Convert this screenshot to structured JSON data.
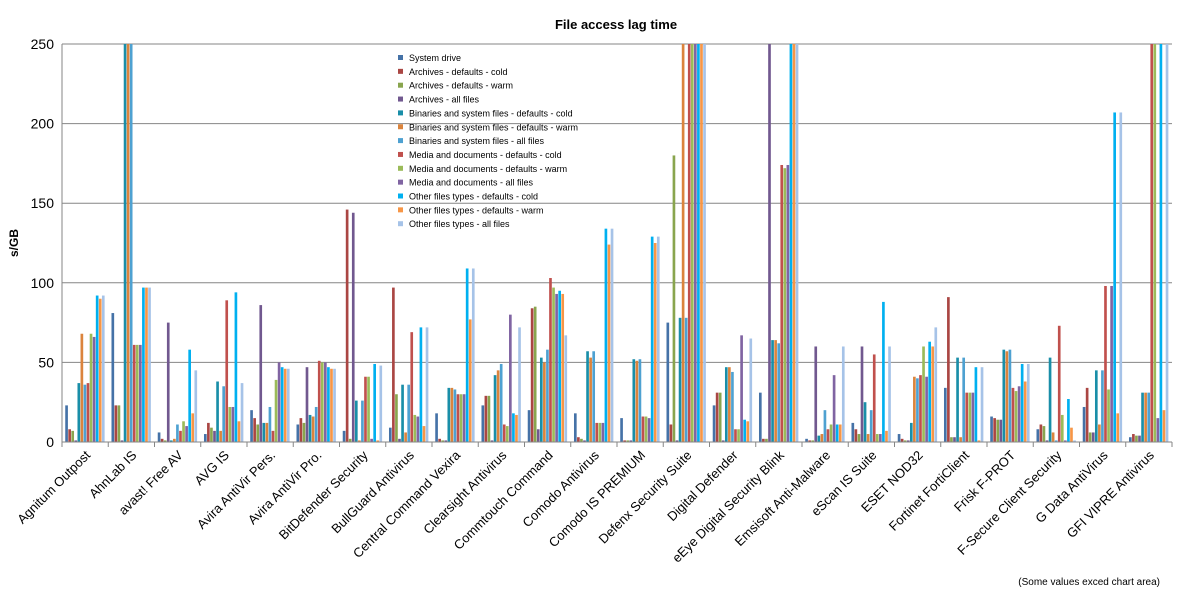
{
  "chart_data": {
    "type": "bar",
    "title": "File access lag time",
    "ylabel": "s/GB",
    "xlabel": "",
    "ylim": [
      0,
      250
    ],
    "yticks": [
      0,
      50,
      100,
      150,
      200,
      250
    ],
    "grid": true,
    "legend_position": "top-center",
    "footnote": "(Some values exced chart area)",
    "categories": [
      "Agnitum Outpost",
      "AhnLab IS",
      "avast! Free AV",
      "AVG IS",
      "Avira AntiVir Pers.",
      "Avira AntiVir Pro.",
      "BitDefender Security",
      "BullGuard Antivirus",
      "Central Command Vexira",
      "Clearsight Antivirus",
      "Commtouch Command",
      "Comodo Antivirus",
      "Comodo IS PREMIUM",
      "Defenx Security Suite",
      "Digital Defender",
      "eEye Digital Security Blink",
      "Emsisoft Anti-Malware",
      "eScan IS Suite",
      "ESET NOD32",
      "Fortinet FortiClient",
      "Frisk F-PROT",
      "F-Secure Client Security",
      "G Data AntiVirus",
      "GFI VIPRE Antivirus"
    ],
    "series": [
      {
        "name": "System drive",
        "color": "#4572A7",
        "values": [
          23,
          81,
          6,
          5,
          20,
          11,
          7,
          9,
          18,
          23,
          20,
          18,
          15,
          75,
          23,
          31,
          2,
          12,
          5,
          34,
          16,
          8,
          22,
          3
        ]
      },
      {
        "name": "Archives - defaults - cold",
        "color": "#AA4643",
        "values": [
          8,
          23,
          2,
          12,
          15,
          15,
          146,
          97,
          2,
          29,
          84,
          3,
          1,
          11,
          31,
          2,
          1,
          8,
          2,
          91,
          15,
          11,
          34,
          5
        ]
      },
      {
        "name": "Archives - defaults - warm",
        "color": "#89A54E",
        "values": [
          7,
          23,
          1,
          9,
          11,
          12,
          2,
          30,
          1,
          29,
          85,
          2,
          1,
          180,
          31,
          2,
          1,
          5,
          1,
          3,
          14,
          10,
          6,
          4
        ]
      },
      {
        "name": "Archives - all files",
        "color": "#71588F",
        "values": [
          1,
          1,
          75,
          7,
          86,
          47,
          144,
          2,
          1,
          1,
          8,
          1,
          1,
          1,
          1,
          250,
          60,
          60,
          1,
          3,
          14,
          1,
          6,
          4
        ]
      },
      {
        "name": "Binaries and system files - defaults - cold",
        "color": "#198EA8",
        "values": [
          37,
          250,
          1,
          38,
          12,
          17,
          26,
          36,
          34,
          42,
          53,
          57,
          52,
          78,
          47,
          64,
          4,
          25,
          12,
          53,
          58,
          53,
          45,
          31
        ]
      },
      {
        "name": "Binaries and system files - defaults - warm",
        "color": "#DB843D",
        "values": [
          68,
          250,
          2,
          7,
          12,
          16,
          1,
          6,
          34,
          45,
          50,
          53,
          51,
          250,
          47,
          64,
          5,
          5,
          41,
          3,
          57,
          6,
          11,
          31
        ]
      },
      {
        "name": "Binaries and system files - all files",
        "color": "#4EA1D1",
        "values": [
          36,
          250,
          11,
          35,
          22,
          22,
          26,
          36,
          33,
          49,
          58,
          57,
          52,
          78,
          44,
          62,
          20,
          20,
          40,
          53,
          58,
          1,
          45,
          31
        ]
      },
      {
        "name": "Media and documents - defaults - cold",
        "color": "#C0504D",
        "values": [
          37,
          61,
          7,
          89,
          7,
          51,
          41,
          69,
          30,
          11,
          103,
          12,
          16,
          250,
          8,
          174,
          8,
          55,
          42,
          31,
          34,
          73,
          98,
          250
        ]
      },
      {
        "name": "Media and documents - defaults - warm",
        "color": "#9BBB59",
        "values": [
          68,
          61,
          13,
          22,
          39,
          50,
          41,
          17,
          30,
          10,
          97,
          12,
          16,
          250,
          8,
          172,
          11,
          5,
          60,
          31,
          32,
          17,
          33,
          250
        ]
      },
      {
        "name": "Media and documents - all files",
        "color": "#8064A2",
        "values": [
          66,
          61,
          10,
          22,
          50,
          50,
          2,
          16,
          30,
          80,
          93,
          12,
          15,
          250,
          67,
          174,
          42,
          5,
          41,
          31,
          35,
          1,
          98,
          15
        ]
      },
      {
        "name": "Other files types - defaults - cold",
        "color": "#00B0F0",
        "values": [
          92,
          97,
          58,
          94,
          47,
          47,
          49,
          72,
          109,
          18,
          95,
          134,
          129,
          250,
          14,
          250,
          11,
          88,
          63,
          47,
          49,
          27,
          207,
          250
        ]
      },
      {
        "name": "Other files types - defaults - warm",
        "color": "#F79646",
        "values": [
          90,
          97,
          18,
          13,
          46,
          46,
          1,
          10,
          77,
          17,
          93,
          124,
          125,
          250,
          13,
          250,
          11,
          7,
          60,
          1,
          38,
          9,
          18,
          20
        ]
      },
      {
        "name": "Other files types - all files",
        "color": "#A6C3E8",
        "values": [
          92,
          97,
          45,
          37,
          46,
          46,
          48,
          72,
          109,
          72,
          67,
          134,
          129,
          250,
          65,
          250,
          60,
          60,
          72,
          47,
          49,
          1,
          207,
          250
        ]
      }
    ]
  }
}
